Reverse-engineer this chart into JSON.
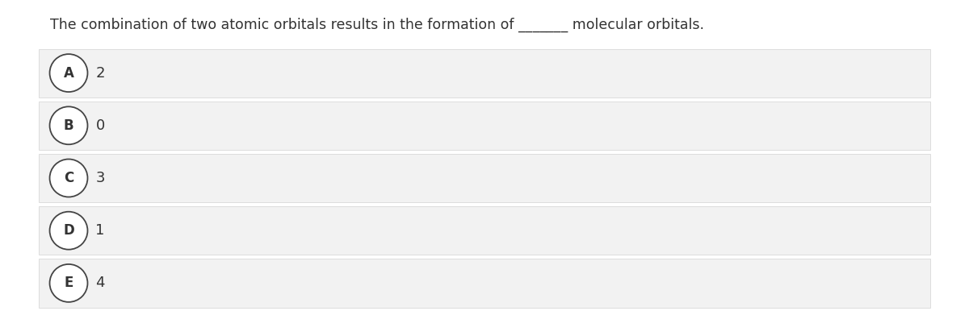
{
  "question_part1": "The combination of two atomic orbitals results in the formation of ",
  "question_blank": "_______",
  "question_part3": " molecular orbitals.",
  "options": [
    {
      "label": "A",
      "value": "2"
    },
    {
      "label": "B",
      "value": "0"
    },
    {
      "label": "C",
      "value": "3"
    },
    {
      "label": "D",
      "value": "1"
    },
    {
      "label": "E",
      "value": "4"
    }
  ],
  "background_color": "#ffffff",
  "option_bg_color": "#f2f2f2",
  "option_border_color": "#d8d8d8",
  "circle_edge_color": "#444444",
  "circle_face_color": "#ffffff",
  "text_color": "#333333",
  "question_fontsize": 12.5,
  "option_fontsize": 13,
  "circle_fontsize": 12,
  "fig_width": 12.0,
  "fig_height": 3.86,
  "dpi": 100
}
